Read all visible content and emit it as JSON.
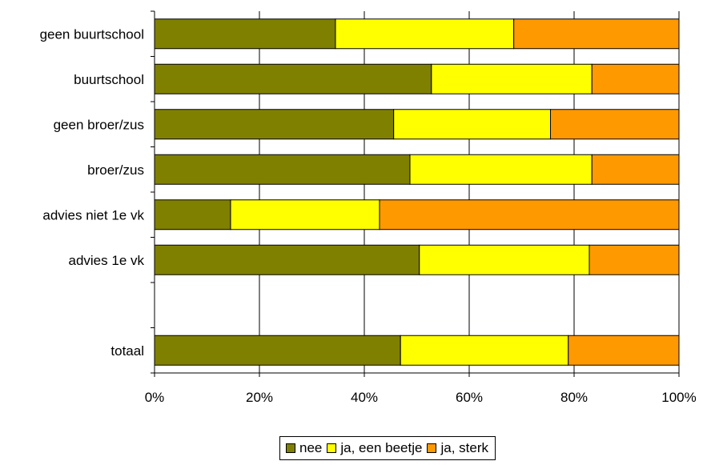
{
  "chart_data": {
    "type": "bar",
    "orientation": "horizontal",
    "stacked": "percent",
    "categories": [
      "geen buurtschool",
      "buurtschool",
      "geen broer/zus",
      "broer/zus",
      "advies niet 1e vk",
      "advies 1e vk",
      "",
      "totaal"
    ],
    "series": [
      {
        "name": "nee",
        "color": "#808000",
        "values": [
          34.5,
          52.8,
          45.6,
          48.7,
          14.5,
          50.5,
          null,
          46.9
        ]
      },
      {
        "name": "ja, een beetje",
        "color": "#ffff00",
        "values": [
          34.0,
          30.6,
          29.9,
          34.7,
          28.4,
          32.4,
          null,
          32.0
        ]
      },
      {
        "name": "ja, sterk",
        "color": "#ff9900",
        "values": [
          31.5,
          16.6,
          24.5,
          16.6,
          57.1,
          17.1,
          null,
          21.1
        ]
      }
    ],
    "xlim": [
      0,
      100
    ],
    "xticks": [
      "0%",
      "20%",
      "40%",
      "60%",
      "80%",
      "100%"
    ],
    "grid": "vertical",
    "legend": "bottom"
  }
}
